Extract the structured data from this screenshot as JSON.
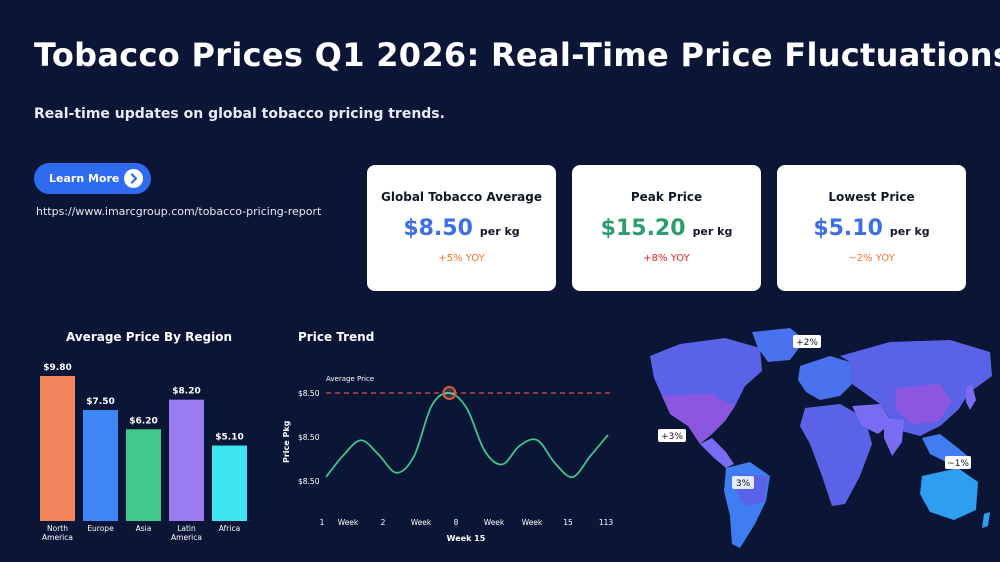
{
  "header": {
    "title": "Tobacco Prices Q1 2026: Real-Time Price Fluctuations",
    "subtitle": "Real-time updates on global tobacco pricing trends."
  },
  "cta": {
    "button_label": "Learn More",
    "button_icon": "chevron-right-icon",
    "url": "https://www.imarcgroup.com/tobacco-pricing-report"
  },
  "cards": [
    {
      "label": "Global Tobacco Average",
      "value": "$8.50",
      "unit": "per kg",
      "change": "+5% YOY",
      "value_color": "#3b6fe3",
      "change_color": "#e8792b"
    },
    {
      "label": "Peak Price",
      "value": "$15.20",
      "unit": "per kg",
      "change": "+8% YOY",
      "value_color": "#2c9d6e",
      "change_color": "#e02424"
    },
    {
      "label": "Lowest Price",
      "value": "$5.10",
      "unit": "per kg",
      "change": "~2% YOY",
      "value_color": "#3b6fe3",
      "change_color": "#e8792b"
    }
  ],
  "chart_data": [
    {
      "type": "bar",
      "title": "Average Price By Region",
      "categories": [
        "North America",
        "Europe",
        "Asia",
        "Latin America",
        "Africa"
      ],
      "category_label_lines": [
        [
          "North",
          "America"
        ],
        [
          "Europe"
        ],
        [
          "Asia"
        ],
        [
          "Latin",
          "America"
        ],
        [
          "Africa"
        ]
      ],
      "values": [
        9.8,
        7.5,
        6.2,
        8.2,
        5.1
      ],
      "value_labels": [
        "$9.80",
        "$7.50",
        "$6.20",
        "$8.20",
        "$5.10"
      ],
      "colors": [
        "#f0855a",
        "#3e86f5",
        "#3fca8c",
        "#9a7cf0",
        "#3ee4f2"
      ],
      "ylim": [
        0,
        9.8
      ]
    },
    {
      "type": "line",
      "title": "Price Trend",
      "xlabel": "Week 15",
      "ylabel": "Price Pkg",
      "x_tick_labels": [
        "1",
        "Week",
        "2",
        "Week",
        "8",
        "Week",
        "Week",
        "15",
        "113"
      ],
      "y_tick_labels": [
        "$8.50",
        "$8.50",
        "$8.50"
      ],
      "reference_line": {
        "label": "Average Price",
        "color": "#e0543a"
      },
      "line_color": "#3fc48a",
      "marker_color": "#e0543a",
      "ylim": [
        0,
        1
      ],
      "values": [
        0.2,
        0.41,
        0.55,
        0.41,
        0.24,
        0.4,
        0.88,
        1.0,
        0.85,
        0.45,
        0.32,
        0.5,
        0.55,
        0.33,
        0.2,
        0.4,
        0.6
      ],
      "peak_index": 7
    }
  ],
  "map": {
    "labels": [
      "+2%",
      "+3%",
      "3%",
      "~1%"
    ],
    "ocean_color": "#0b1535",
    "land_colors": [
      "#5a63e8",
      "#7a6cf2",
      "#8b56e0",
      "#3f7df0",
      "#2f9df0"
    ]
  }
}
